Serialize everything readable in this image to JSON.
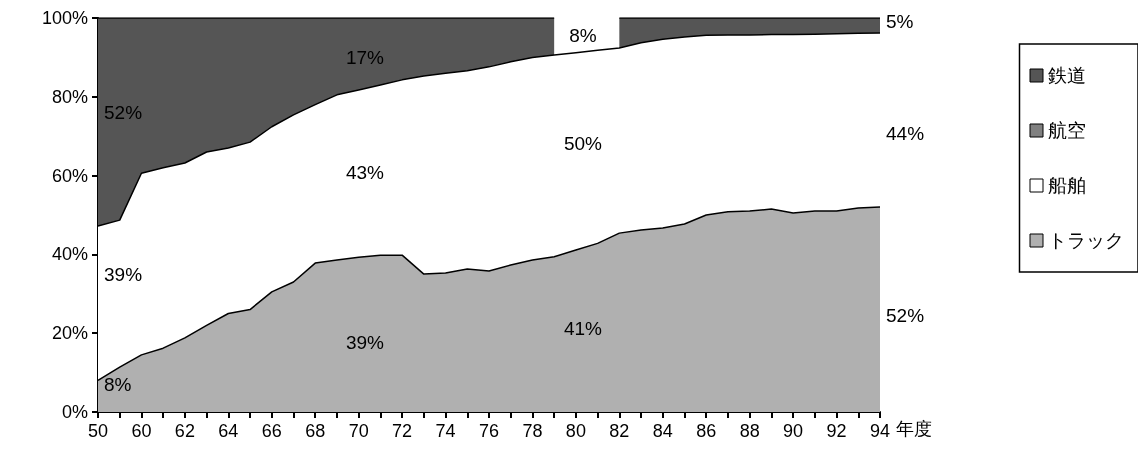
{
  "chart_data": {
    "type": "area",
    "stacked": true,
    "xlabel": "年度",
    "marker": "none",
    "legend": "right",
    "categories": [
      "50",
      null,
      "60",
      null,
      "62",
      null,
      "64",
      null,
      "66",
      null,
      "68",
      null,
      "70",
      null,
      "72",
      null,
      "74",
      null,
      "76",
      null,
      "78",
      null,
      "80",
      null,
      "82",
      null,
      "84",
      null,
      "86",
      null,
      "88",
      null,
      "90",
      null,
      "92",
      null,
      "94"
    ],
    "ylim": [
      0,
      100
    ],
    "yticks": [
      {
        "value": 0,
        "label": "0%"
      },
      {
        "value": 20,
        "label": "20%"
      },
      {
        "value": 40,
        "label": "40%"
      },
      {
        "value": 60,
        "label": "60%"
      },
      {
        "value": 80,
        "label": "80%"
      },
      {
        "value": 100,
        "label": "100%"
      }
    ],
    "series": [
      {
        "name": "トラック",
        "color": "#b0b0b0",
        "values": [
          8,
          11.4,
          14.5,
          16.2,
          18.8,
          22,
          25,
          26,
          30.5,
          33,
          37.8,
          38.6,
          39.3,
          39.8,
          39.8,
          35,
          35.3,
          36.3,
          35.8,
          37.3,
          38.6,
          39.4,
          41.1,
          42.8,
          45.4,
          46.2,
          46.7,
          47.7,
          50,
          50.8,
          51,
          51.5,
          50.5,
          51,
          51,
          51.8,
          52
        ]
      },
      {
        "name": "船舶",
        "color": "#ffffff",
        "values": [
          39.2,
          37.3,
          46.1,
          45.8,
          44.4,
          44,
          42,
          42.5,
          41.9,
          42.4,
          40.2,
          41.9,
          42.4,
          43.2,
          44.5,
          50.3,
          50.7,
          50.3,
          51.8,
          51.6,
          51.4,
          51.2,
          50.1,
          49,
          47,
          47.5,
          47.9,
          47.5,
          45.6,
          44.9,
          44.7,
          44.3,
          45.3,
          44.9,
          45,
          44.3,
          44.2
        ]
      },
      {
        "name": "航空",
        "color": "#808080",
        "values": [
          null,
          null,
          null,
          null,
          null,
          null,
          null,
          null,
          null,
          null,
          null,
          null,
          null,
          null,
          null,
          null,
          null,
          null,
          null,
          null,
          null,
          null,
          null,
          null,
          null,
          null,
          null,
          null,
          null,
          null,
          null,
          null,
          null,
          null,
          null,
          null,
          null
        ]
      },
      {
        "name": "鉄道",
        "color": "#555555",
        "values": [
          52.8,
          51.3,
          39.4,
          38,
          36.8,
          34,
          33,
          31.5,
          27.6,
          24.6,
          22,
          19.5,
          18.3,
          17,
          15.7,
          14.7,
          14,
          13.4,
          12.4,
          11.1,
          10,
          9.4,
          null,
          null,
          7.6,
          6.3,
          5.4,
          4.8,
          4.4,
          4.3,
          4.3,
          4.2,
          4.2,
          4.1,
          4,
          3.9,
          3.8
        ]
      }
    ],
    "annotations": [
      {
        "text": "52%",
        "x": "50",
        "y": 75.9
      },
      {
        "text": "39%",
        "x": "50",
        "y": 34.8
      },
      {
        "text": "8%",
        "x": "50",
        "y": 6.9
      },
      "17%",
      "43%",
      "39%",
      "8%",
      "50%",
      "41%",
      {
        "text": "5%",
        "x": "94",
        "y": 99
      },
      {
        "text": "44%",
        "x": "94",
        "y": 70.8
      },
      {
        "text": "52%",
        "x": "94",
        "y": 24.6
      }
    ]
  }
}
